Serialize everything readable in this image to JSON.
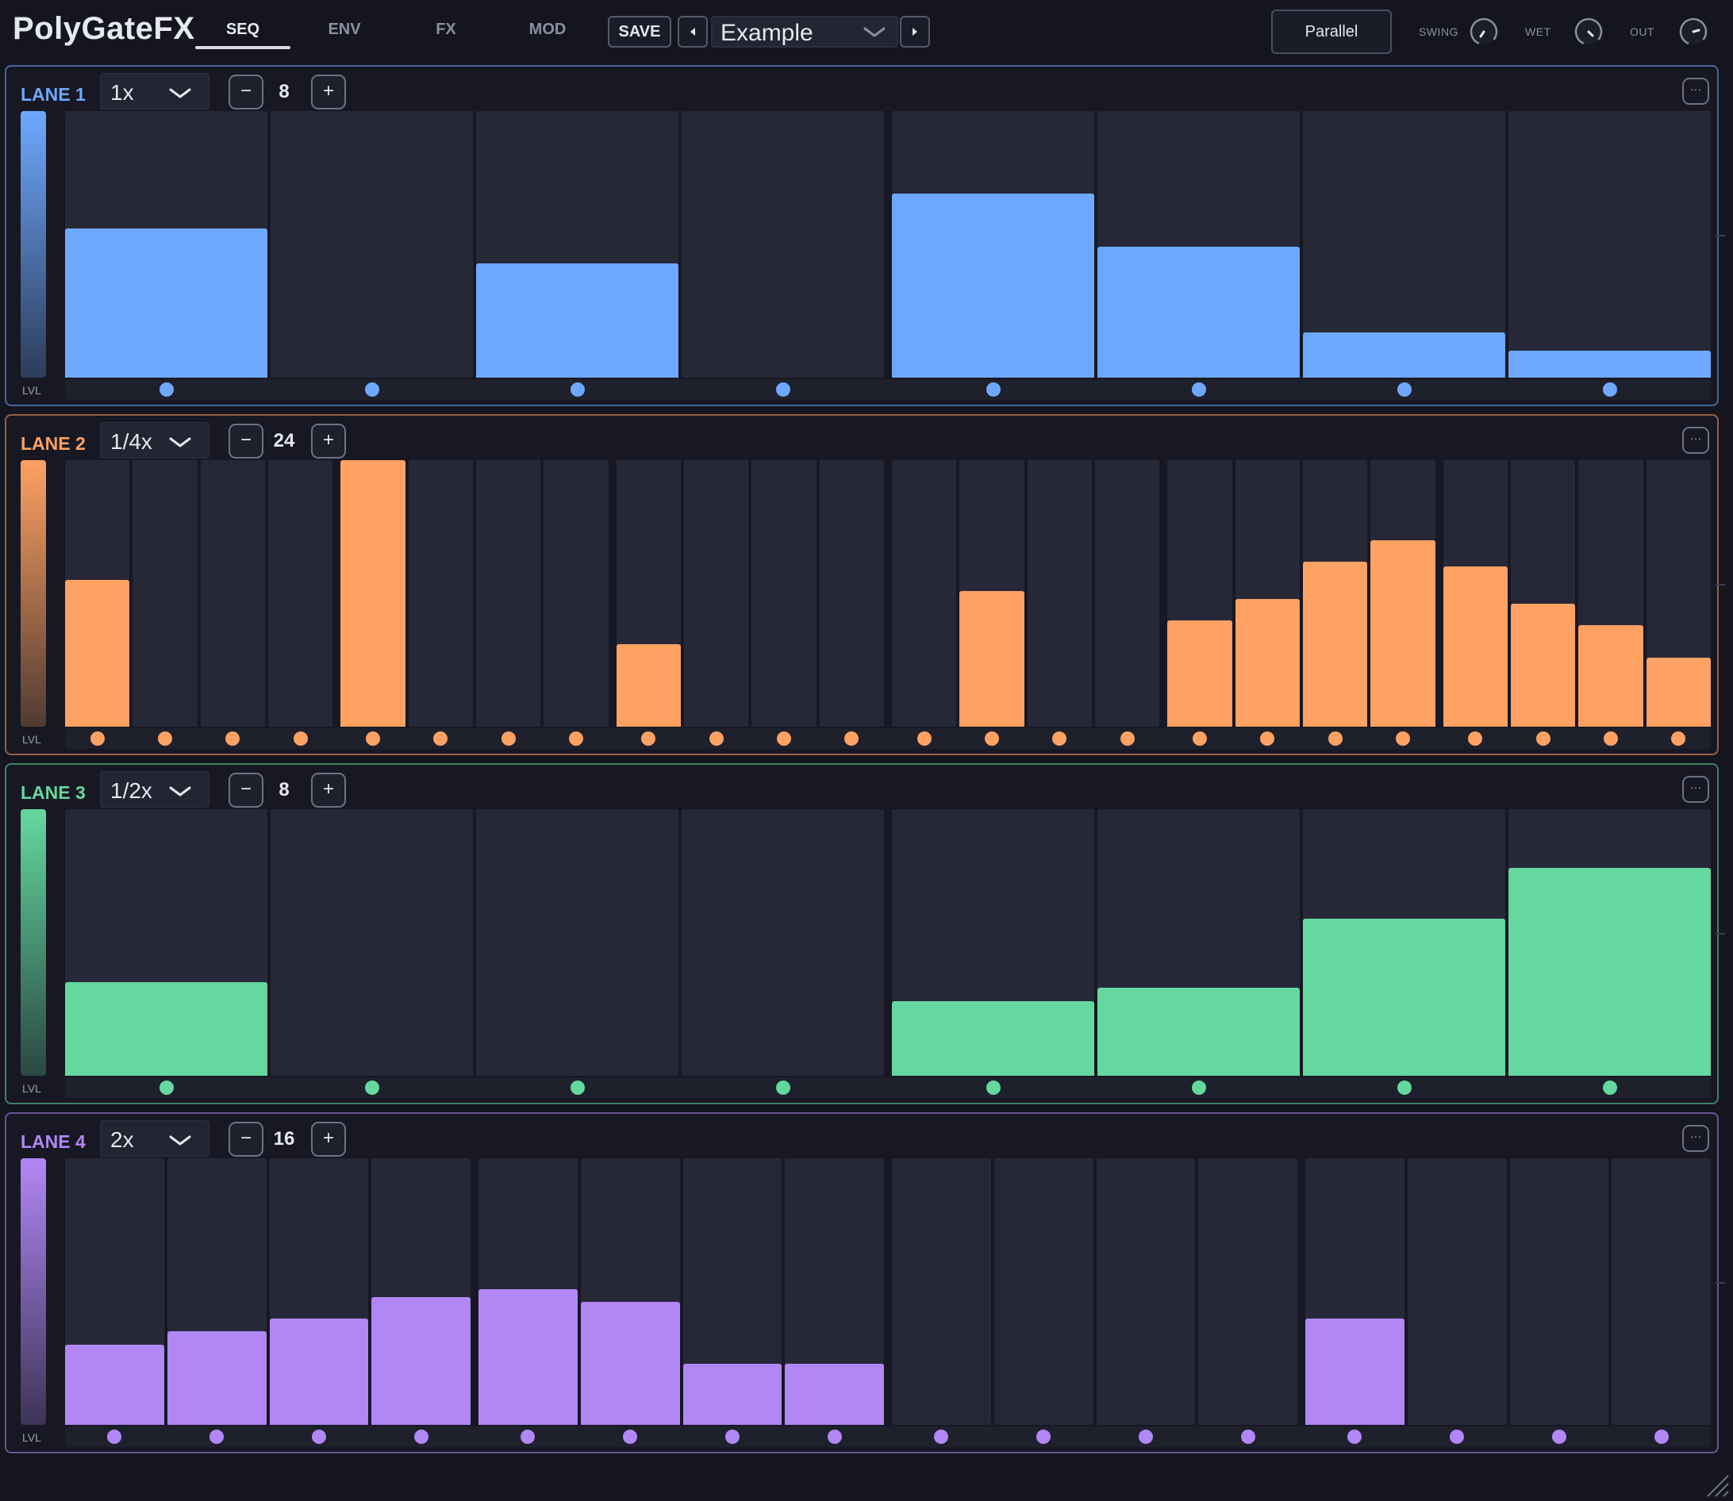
{
  "header": {
    "logo": "PolyGateFX",
    "tabs": [
      {
        "label": "SEQ",
        "active": true
      },
      {
        "label": "ENV",
        "active": false
      },
      {
        "label": "FX",
        "active": false
      },
      {
        "label": "MOD",
        "active": false
      }
    ],
    "save_label": "SAVE",
    "prev_icon": "triangle-left",
    "next_icon": "triangle-right",
    "preset_name": "Example",
    "mode_label": "Parallel",
    "knobs": [
      {
        "label": "SWING"
      },
      {
        "label": "WET"
      },
      {
        "label": "OUT"
      }
    ]
  },
  "lanes": [
    {
      "label": "LANE 1",
      "color": "#6ea8fe",
      "rate": "1x",
      "step_count": "8",
      "lvl_label": "LVL",
      "menu_label": "···",
      "steps": [
        0.56,
        0,
        0.43,
        0,
        0.69,
        0.49,
        0.17,
        0.1
      ]
    },
    {
      "label": "LANE 2",
      "color": "#fea162",
      "rate": "1/4x",
      "step_count": "24",
      "lvl_label": "LVL",
      "menu_label": "···",
      "steps": [
        0.55,
        0,
        0,
        0,
        1.0,
        0,
        0,
        0,
        0.31,
        0,
        0,
        0,
        0,
        0.51,
        0,
        0,
        0.4,
        0.48,
        0.62,
        0.7,
        0.6,
        0.46,
        0.38,
        0.26
      ]
    },
    {
      "label": "LANE 3",
      "color": "#64d89f",
      "rate": "1/2x",
      "step_count": "8",
      "lvl_label": "LVL",
      "menu_label": "···",
      "steps": [
        0.35,
        0,
        0,
        0,
        0.28,
        0.33,
        0.59,
        0.78
      ]
    },
    {
      "label": "LANE 4",
      "color": "#b187f5",
      "rate": "2x",
      "step_count": "16",
      "lvl_label": "LVL",
      "menu_label": "···",
      "steps": [
        0.3,
        0.35,
        0.4,
        0.48,
        0.51,
        0.46,
        0.23,
        0.23,
        0,
        0,
        0,
        0,
        0.4,
        0,
        0,
        0
      ]
    }
  ]
}
